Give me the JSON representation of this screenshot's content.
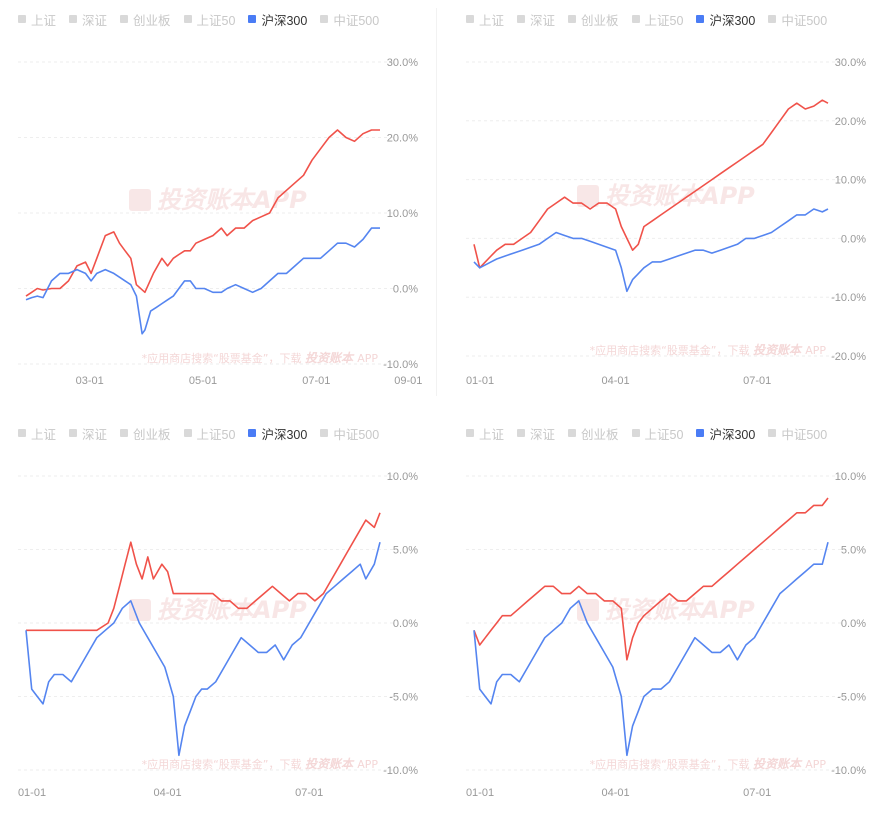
{
  "legend": {
    "items": [
      {
        "label": "上证",
        "active": false
      },
      {
        "label": "深证",
        "active": false
      },
      {
        "label": "创业板",
        "active": false
      },
      {
        "label": "上证50",
        "active": false
      },
      {
        "label": "沪深300",
        "active": true
      },
      {
        "label": "中证500",
        "active": false
      }
    ],
    "active_color": "#4a7cf5",
    "inactive_color": "#d9d9d9"
  },
  "watermark": {
    "brand": "投资账本APP",
    "search_text": "*应用商店搜索“股票基金”，下载",
    "brand_small": "投资账本",
    "app_suffix": "APP"
  },
  "colors": {
    "fund_line": "#f0524a",
    "index_line": "#5585f0",
    "grid": "#eeeeee",
    "axis_text": "#999999",
    "watermark": "#f3d3d3"
  },
  "chart_data": [
    {
      "type": "line",
      "x_ticks": [
        "03-01",
        "05-01",
        "07-01",
        "09-01"
      ],
      "y_ticks": [
        "30.0%",
        "20.0%",
        "10.0%",
        "0.0%",
        "-10.0%"
      ],
      "y_tick_values": [
        30,
        20,
        10,
        0,
        -10
      ],
      "ylim": [
        -10,
        30
      ],
      "xlim": [
        0,
        250
      ],
      "x_tick_values": [
        45,
        125,
        205,
        270
      ],
      "series": [
        {
          "color": "#f0524a",
          "x": [
            0,
            4,
            8,
            12,
            18,
            24,
            30,
            36,
            42,
            46,
            50,
            56,
            62,
            66,
            70,
            74,
            78,
            84,
            90,
            96,
            100,
            104,
            108,
            112,
            116,
            120,
            126,
            132,
            138,
            142,
            148,
            154,
            160,
            166,
            172,
            178,
            184,
            190,
            196,
            202,
            208,
            214,
            220,
            226,
            232,
            238,
            244,
            250
          ],
          "y": [
            -1,
            -0.5,
            0,
            -0.2,
            0,
            0,
            1,
            3,
            3.5,
            2,
            4,
            7,
            7.5,
            6,
            5,
            4,
            0.5,
            -0.5,
            2,
            4,
            3,
            4,
            4.5,
            5,
            5,
            6,
            6.5,
            7,
            8,
            7,
            8,
            8,
            9,
            9.5,
            10,
            12,
            13,
            14,
            15,
            17,
            18.5,
            20,
            21,
            20,
            19.5,
            20.5,
            21,
            21
          ]
        },
        {
          "color": "#5585f0",
          "x": [
            0,
            4,
            8,
            12,
            18,
            24,
            30,
            36,
            42,
            46,
            50,
            56,
            62,
            66,
            70,
            74,
            78,
            82,
            84,
            88,
            92,
            96,
            100,
            104,
            108,
            112,
            116,
            120,
            126,
            132,
            138,
            142,
            148,
            154,
            160,
            166,
            172,
            178,
            184,
            190,
            196,
            202,
            208,
            214,
            220,
            226,
            232,
            238,
            244,
            250
          ],
          "y": [
            -1.5,
            -1.2,
            -1,
            -1.2,
            1,
            2,
            2,
            2.5,
            2,
            1,
            2,
            2.5,
            2,
            1.5,
            1,
            0.5,
            -1,
            -6,
            -5.5,
            -3,
            -2.5,
            -2,
            -1.5,
            -1,
            0,
            1,
            1,
            0,
            0,
            -0.5,
            -0.5,
            0,
            0.5,
            0,
            -0.5,
            0,
            1,
            2,
            2,
            3,
            4,
            4,
            4,
            5,
            6,
            6,
            5.5,
            6.5,
            8,
            8
          ]
        }
      ]
    },
    {
      "type": "line",
      "x_ticks": [
        "01-01",
        "04-01",
        "07-01"
      ],
      "y_ticks": [
        "30.0%",
        "20.0%",
        "10.0%",
        "0.0%",
        "-10.0%",
        "-20.0%"
      ],
      "y_tick_values": [
        30,
        20,
        10,
        0,
        -10,
        -20
      ],
      "ylim": [
        -20,
        30
      ],
      "xlim": [
        0,
        250
      ],
      "x_tick_values": [
        0,
        100,
        200
      ],
      "series": [
        {
          "color": "#f0524a",
          "x": [
            0,
            4,
            8,
            12,
            16,
            22,
            28,
            34,
            40,
            46,
            52,
            58,
            64,
            70,
            76,
            82,
            88,
            94,
            100,
            104,
            108,
            112,
            116,
            120,
            126,
            132,
            138,
            144,
            150,
            156,
            162,
            168,
            174,
            180,
            186,
            192,
            198,
            204,
            210,
            216,
            222,
            228,
            234,
            240,
            246,
            250
          ],
          "y": [
            -1,
            -5,
            -4,
            -3,
            -2,
            -1,
            -1,
            0,
            1,
            3,
            5,
            6,
            7,
            6,
            6,
            5,
            6,
            6,
            5,
            2,
            0,
            -2,
            -1,
            2,
            3,
            4,
            5,
            6,
            7,
            8,
            9,
            10,
            11,
            12,
            13,
            14,
            15,
            16,
            18,
            20,
            22,
            23,
            22,
            22.5,
            23.5,
            23
          ]
        },
        {
          "color": "#5585f0",
          "x": [
            0,
            4,
            8,
            12,
            16,
            22,
            28,
            34,
            40,
            46,
            52,
            58,
            64,
            70,
            76,
            82,
            88,
            94,
            100,
            104,
            108,
            112,
            116,
            120,
            126,
            132,
            138,
            144,
            150,
            156,
            162,
            168,
            174,
            180,
            186,
            192,
            198,
            204,
            210,
            216,
            222,
            228,
            234,
            240,
            246,
            250
          ],
          "y": [
            -4,
            -5,
            -4.5,
            -4,
            -3.5,
            -3,
            -2.5,
            -2,
            -1.5,
            -1,
            0,
            1,
            0.5,
            0,
            0,
            -0.5,
            -1,
            -1.5,
            -2,
            -5,
            -9,
            -7,
            -6,
            -5,
            -4,
            -4,
            -3.5,
            -3,
            -2.5,
            -2,
            -2,
            -2.5,
            -2,
            -1.5,
            -1,
            0,
            0,
            0.5,
            1,
            2,
            3,
            4,
            4,
            5,
            4.5,
            5
          ]
        }
      ]
    },
    {
      "type": "line",
      "x_ticks": [
        "01-01",
        "04-01",
        "07-01"
      ],
      "y_ticks": [
        "10.0%",
        "5.0%",
        "0.0%",
        "-5.0%",
        "-10.0%"
      ],
      "y_tick_values": [
        10,
        5,
        0,
        -5,
        -10
      ],
      "ylim": [
        -10,
        10
      ],
      "xlim": [
        0,
        250
      ],
      "x_tick_values": [
        0,
        100,
        200
      ],
      "series": [
        {
          "color": "#f0524a",
          "x": [
            0,
            10,
            20,
            30,
            40,
            50,
            58,
            62,
            66,
            70,
            74,
            78,
            82,
            86,
            90,
            96,
            100,
            104,
            108,
            112,
            116,
            120,
            126,
            132,
            138,
            144,
            150,
            156,
            162,
            168,
            174,
            180,
            186,
            192,
            198,
            204,
            210,
            216,
            222,
            228,
            234,
            240,
            246,
            250
          ],
          "y": [
            -0.5,
            -0.5,
            -0.5,
            -0.5,
            -0.5,
            -0.5,
            0,
            1,
            2.5,
            4,
            5.5,
            4,
            3,
            4.5,
            3,
            4,
            3.5,
            2,
            2,
            2,
            2,
            2,
            2,
            2,
            1.5,
            1.5,
            1,
            1,
            1.5,
            2,
            2.5,
            2,
            1.5,
            2,
            2,
            1.5,
            2,
            3,
            4,
            5,
            6,
            7,
            6.5,
            7.5
          ]
        },
        {
          "color": "#5585f0",
          "x": [
            0,
            4,
            8,
            12,
            16,
            20,
            26,
            32,
            38,
            44,
            50,
            56,
            62,
            68,
            74,
            80,
            86,
            92,
            98,
            104,
            108,
            112,
            116,
            120,
            124,
            128,
            134,
            140,
            146,
            152,
            158,
            164,
            170,
            176,
            182,
            188,
            194,
            200,
            206,
            212,
            218,
            224,
            230,
            236,
            240,
            246,
            250
          ],
          "y": [
            -0.5,
            -4.5,
            -5,
            -5.5,
            -4,
            -3.5,
            -3.5,
            -4,
            -3,
            -2,
            -1,
            -0.5,
            0,
            1,
            1.5,
            0,
            -1,
            -2,
            -3,
            -5,
            -9,
            -7,
            -6,
            -5,
            -4.5,
            -4.5,
            -4,
            -3,
            -2,
            -1,
            -1.5,
            -2,
            -2,
            -1.5,
            -2.5,
            -1.5,
            -1,
            0,
            1,
            2,
            2.5,
            3,
            3.5,
            4,
            3,
            4,
            5.5
          ]
        }
      ]
    },
    {
      "type": "line",
      "x_ticks": [
        "01-01",
        "04-01",
        "07-01"
      ],
      "y_ticks": [
        "10.0%",
        "5.0%",
        "0.0%",
        "-5.0%",
        "-10.0%"
      ],
      "y_tick_values": [
        10,
        5,
        0,
        -5,
        -10
      ],
      "ylim": [
        -10,
        10
      ],
      "xlim": [
        0,
        250
      ],
      "x_tick_values": [
        0,
        100,
        200
      ],
      "series": [
        {
          "color": "#f0524a",
          "x": [
            0,
            4,
            8,
            12,
            16,
            20,
            26,
            32,
            38,
            44,
            50,
            56,
            62,
            68,
            74,
            80,
            86,
            92,
            98,
            104,
            108,
            112,
            116,
            120,
            126,
            132,
            138,
            144,
            150,
            156,
            162,
            168,
            174,
            180,
            186,
            192,
            198,
            204,
            210,
            216,
            222,
            228,
            234,
            240,
            246,
            250
          ],
          "y": [
            -0.5,
            -1.5,
            -1,
            -0.5,
            0,
            0.5,
            0.5,
            1,
            1.5,
            2,
            2.5,
            2.5,
            2,
            2,
            2.5,
            2,
            2,
            1.5,
            1.5,
            1,
            -2.5,
            -1,
            0,
            0.5,
            1,
            1.5,
            2,
            1.5,
            1.5,
            2,
            2.5,
            2.5,
            3,
            3.5,
            4,
            4.5,
            5,
            5.5,
            6,
            6.5,
            7,
            7.5,
            7.5,
            8,
            8,
            8.5
          ]
        },
        {
          "color": "#5585f0",
          "x": [
            0,
            4,
            8,
            12,
            16,
            20,
            26,
            32,
            38,
            44,
            50,
            56,
            62,
            68,
            74,
            80,
            86,
            92,
            98,
            104,
            108,
            112,
            116,
            120,
            126,
            132,
            138,
            144,
            150,
            156,
            162,
            168,
            174,
            180,
            186,
            192,
            198,
            204,
            210,
            216,
            222,
            228,
            234,
            240,
            246,
            250
          ],
          "y": [
            -0.5,
            -4.5,
            -5,
            -5.5,
            -4,
            -3.5,
            -3.5,
            -4,
            -3,
            -2,
            -1,
            -0.5,
            0,
            1,
            1.5,
            0,
            -1,
            -2,
            -3,
            -5,
            -9,
            -7,
            -6,
            -5,
            -4.5,
            -4.5,
            -4,
            -3,
            -2,
            -1,
            -1.5,
            -2,
            -2,
            -1.5,
            -2.5,
            -1.5,
            -1,
            0,
            1,
            2,
            2.5,
            3,
            3.5,
            4,
            4,
            5.5
          ]
        }
      ]
    }
  ]
}
